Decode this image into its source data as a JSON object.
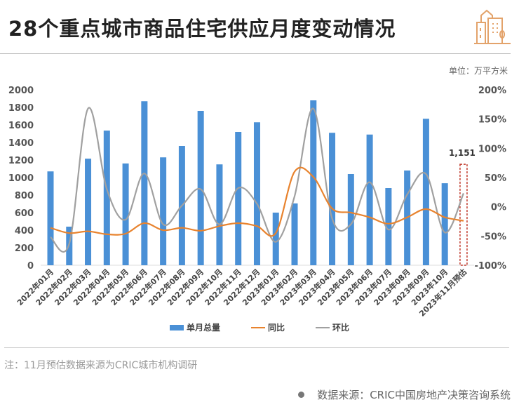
{
  "header": {
    "title": "28个重点城市商品住宅供应月度变动情况",
    "unit": "单位：万平方米"
  },
  "colors": {
    "bar": "#4a90d6",
    "yoy": "#e8832e",
    "mom": "#a0a0a0",
    "estimate": "#c0392b"
  },
  "chart_data": {
    "type": "bar",
    "title": "28个重点城市商品住宅供应月度变动情况",
    "categories": [
      "2022年01月",
      "2022年02月",
      "2022年03月",
      "2022年04月",
      "2022年05月",
      "2022年06月",
      "2022年07月",
      "2022年08月",
      "2022年09月",
      "2022年10月",
      "2022年11月",
      "2022年12月",
      "2023年01月",
      "2023年02月",
      "2023年03月",
      "2023年04月",
      "2023年05月",
      "2023年06月",
      "2023年07月",
      "2023年08月",
      "2023年09月",
      "2023年10月",
      "2023年11月预估"
    ],
    "series": [
      {
        "name": "单月总量",
        "type": "bar",
        "axis": "left",
        "values": [
          1070,
          440,
          1215,
          1535,
          1160,
          1870,
          1230,
          1360,
          1760,
          1150,
          1520,
          1630,
          600,
          705,
          1880,
          1510,
          1040,
          1490,
          880,
          1080,
          1670,
          935,
          1151
        ]
      },
      {
        "name": "同比",
        "type": "line",
        "axis": "right",
        "values": [
          -36,
          -45,
          -42,
          -47,
          -46,
          -28,
          -40,
          -36,
          -41,
          -33,
          -28,
          -33,
          -45,
          60,
          51,
          -3,
          -10,
          -18,
          -29,
          -18,
          -4,
          -18,
          -24
        ]
      },
      {
        "name": "环比",
        "type": "line",
        "axis": "right",
        "values": [
          -52,
          -63,
          168,
          30,
          -22,
          57,
          -30,
          2,
          30,
          -30,
          32,
          5,
          -60,
          18,
          168,
          -20,
          -30,
          42,
          -39,
          21,
          56,
          -44,
          23
        ]
      }
    ],
    "left_axis": {
      "ylim": [
        0,
        2000
      ],
      "ticks": [
        "0",
        "200",
        "400",
        "600",
        "800",
        "1000",
        "1200",
        "1400",
        "1600",
        "1800",
        "2000"
      ]
    },
    "right_axis": {
      "ylim": [
        -100,
        200
      ],
      "ticks": [
        "-100%",
        "-50%",
        "0%",
        "50%",
        "100%",
        "150%",
        "200%"
      ]
    },
    "annotation": "1,151",
    "legend": [
      "单月总量",
      "同比",
      "环比"
    ],
    "legend_position": "bottom"
  },
  "footer": {
    "note": "注：11月预估数据来源为CRIC城市机构调研",
    "source": "数据来源：CRIC中国房地产决策咨询系统"
  }
}
